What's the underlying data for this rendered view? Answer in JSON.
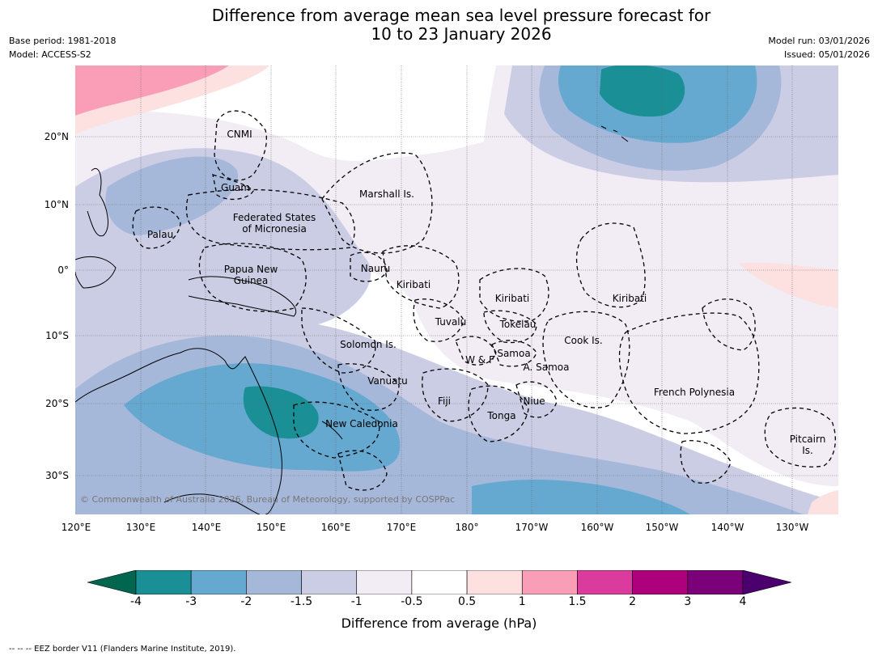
{
  "title": {
    "line1": "Difference from average mean sea level pressure forecast for",
    "line2": "10 to 23 January 2026"
  },
  "meta": {
    "base_period": "Base period: 1981-2018",
    "model": "Model: ACCESS-S2",
    "model_run": "Model run: 03/01/2026",
    "issued": "Issued: 05/01/2026"
  },
  "map": {
    "copyright": "© Commonwealth of Australia 2026, Bureau of Meteorology, supported by COSPPac",
    "lon_ticks": [
      "120°E",
      "130°E",
      "140°E",
      "150°E",
      "160°E",
      "170°E",
      "180°",
      "170°W",
      "160°W",
      "150°W",
      "140°W",
      "130°W"
    ],
    "lat_ticks": [
      "20°N",
      "10°N",
      "0°",
      "10°S",
      "20°S",
      "30°S"
    ],
    "labels": {
      "cnmi": "CNMI",
      "guam": "Guam",
      "marshall": "Marshall Is.",
      "fsm_1": "Federated States",
      "fsm_2": "of Micronesia",
      "palau": "Palau",
      "png_1": "Papua New",
      "png_2": "Guinea",
      "nauru": "Nauru",
      "kiribati_w": "Kiribati",
      "kiribati_c": "Kiribati",
      "kiribati_e": "Kiribati",
      "tuvalu": "Tuvalu",
      "tokelau": "Tokelau",
      "solomon": "Solomon Is.",
      "wf": "W & F",
      "samoa": "Samoa",
      "asamoa": "A. Samoa",
      "cook": "Cook Is.",
      "vanuatu": "Vanuatu",
      "fiji": "Fiji",
      "niue": "Niue",
      "tonga": "Tonga",
      "new_caledonia": "New Caledonia",
      "french_polynesia": "French Polynesia",
      "pitcairn_1": "Pitcairn",
      "pitcairn_2": "Is."
    }
  },
  "colorbar": {
    "label": "Difference from average (hPa)",
    "ticks": [
      "-4",
      "-3",
      "-2",
      "-1.5",
      "-1",
      "-0.5",
      "0.5",
      "1",
      "1.5",
      "2",
      "3",
      "4"
    ],
    "bins": [
      {
        "range": "-4 to -3",
        "color": "#1a8f96"
      },
      {
        "range": "-3 to -2",
        "color": "#65a8d0"
      },
      {
        "range": "-2 to -1.5",
        "color": "#a6b8da"
      },
      {
        "range": "-1.5 to -1",
        "color": "#cbcde4"
      },
      {
        "range": "-1 to -0.5",
        "color": "#f2ecf5"
      },
      {
        "range": "-0.5 to 0.5",
        "color": "#ffffff"
      },
      {
        "range": "0.5 to 1",
        "color": "#fde0e0"
      },
      {
        "range": "1 to 1.5",
        "color": "#f99eb6"
      },
      {
        "range": "1.5 to 2",
        "color": "#dc3b9e"
      },
      {
        "range": "2 to 3",
        "color": "#ad007d"
      },
      {
        "range": "3 to 4",
        "color": "#7a0177"
      }
    ],
    "under_color": "#00664f",
    "over_color": "#4b006e"
  },
  "footer": "-- -- -- EEZ border V11 (Flanders Marine Institute, 2019)."
}
